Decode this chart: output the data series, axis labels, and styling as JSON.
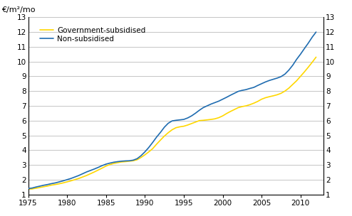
{
  "ylabel_left": "€/m²/mo",
  "ylim": [
    1,
    13
  ],
  "xlim": [
    1975,
    2013
  ],
  "yticks": [
    1,
    2,
    3,
    4,
    5,
    6,
    7,
    8,
    9,
    10,
    11,
    12,
    13
  ],
  "xticks": [
    1975,
    1980,
    1985,
    1990,
    1995,
    2000,
    2005,
    2010
  ],
  "gov_color": "#FFD700",
  "nonsub_color": "#1F6CB0",
  "gov_label": "Government-subsidised",
  "nonsub_label": "Non-subsidised",
  "gov_data": [
    [
      1975.0,
      1.35
    ],
    [
      1975.5,
      1.37
    ],
    [
      1976.0,
      1.42
    ],
    [
      1976.5,
      1.47
    ],
    [
      1977.0,
      1.52
    ],
    [
      1977.5,
      1.57
    ],
    [
      1978.0,
      1.63
    ],
    [
      1978.5,
      1.67
    ],
    [
      1979.0,
      1.72
    ],
    [
      1979.5,
      1.78
    ],
    [
      1980.0,
      1.85
    ],
    [
      1980.5,
      1.92
    ],
    [
      1981.0,
      2.0
    ],
    [
      1981.5,
      2.08
    ],
    [
      1982.0,
      2.18
    ],
    [
      1982.5,
      2.28
    ],
    [
      1983.0,
      2.4
    ],
    [
      1983.5,
      2.52
    ],
    [
      1984.0,
      2.65
    ],
    [
      1984.5,
      2.78
    ],
    [
      1985.0,
      2.92
    ],
    [
      1985.5,
      3.02
    ],
    [
      1986.0,
      3.1
    ],
    [
      1986.5,
      3.15
    ],
    [
      1987.0,
      3.2
    ],
    [
      1987.5,
      3.22
    ],
    [
      1988.0,
      3.25
    ],
    [
      1988.5,
      3.28
    ],
    [
      1989.0,
      3.35
    ],
    [
      1989.5,
      3.5
    ],
    [
      1990.0,
      3.68
    ],
    [
      1990.5,
      3.88
    ],
    [
      1991.0,
      4.1
    ],
    [
      1991.5,
      4.4
    ],
    [
      1992.0,
      4.68
    ],
    [
      1992.5,
      4.95
    ],
    [
      1993.0,
      5.18
    ],
    [
      1993.5,
      5.38
    ],
    [
      1994.0,
      5.52
    ],
    [
      1994.5,
      5.58
    ],
    [
      1995.0,
      5.62
    ],
    [
      1995.5,
      5.7
    ],
    [
      1996.0,
      5.8
    ],
    [
      1996.5,
      5.9
    ],
    [
      1997.0,
      6.0
    ],
    [
      1997.5,
      6.02
    ],
    [
      1998.0,
      6.05
    ],
    [
      1998.5,
      6.08
    ],
    [
      1999.0,
      6.12
    ],
    [
      1999.5,
      6.2
    ],
    [
      2000.0,
      6.32
    ],
    [
      2000.5,
      6.48
    ],
    [
      2001.0,
      6.62
    ],
    [
      2001.5,
      6.75
    ],
    [
      2002.0,
      6.88
    ],
    [
      2002.5,
      6.95
    ],
    [
      2003.0,
      7.0
    ],
    [
      2003.5,
      7.08
    ],
    [
      2004.0,
      7.18
    ],
    [
      2004.5,
      7.3
    ],
    [
      2005.0,
      7.45
    ],
    [
      2005.5,
      7.55
    ],
    [
      2006.0,
      7.62
    ],
    [
      2006.5,
      7.68
    ],
    [
      2007.0,
      7.75
    ],
    [
      2007.5,
      7.85
    ],
    [
      2008.0,
      8.0
    ],
    [
      2008.5,
      8.2
    ],
    [
      2009.0,
      8.45
    ],
    [
      2009.5,
      8.7
    ],
    [
      2010.0,
      9.0
    ],
    [
      2010.5,
      9.3
    ],
    [
      2011.0,
      9.62
    ],
    [
      2011.5,
      9.95
    ],
    [
      2012.0,
      10.3
    ]
  ],
  "nonsub_data": [
    [
      1975.0,
      1.4
    ],
    [
      1975.5,
      1.43
    ],
    [
      1976.0,
      1.5
    ],
    [
      1976.5,
      1.56
    ],
    [
      1977.0,
      1.62
    ],
    [
      1977.5,
      1.67
    ],
    [
      1978.0,
      1.73
    ],
    [
      1978.5,
      1.78
    ],
    [
      1979.0,
      1.85
    ],
    [
      1979.5,
      1.92
    ],
    [
      1980.0,
      2.0
    ],
    [
      1980.5,
      2.08
    ],
    [
      1981.0,
      2.18
    ],
    [
      1981.5,
      2.28
    ],
    [
      1982.0,
      2.4
    ],
    [
      1982.5,
      2.52
    ],
    [
      1983.0,
      2.62
    ],
    [
      1983.5,
      2.72
    ],
    [
      1984.0,
      2.83
    ],
    [
      1984.5,
      2.95
    ],
    [
      1985.0,
      3.05
    ],
    [
      1985.5,
      3.12
    ],
    [
      1986.0,
      3.18
    ],
    [
      1986.5,
      3.22
    ],
    [
      1987.0,
      3.25
    ],
    [
      1987.5,
      3.27
    ],
    [
      1988.0,
      3.28
    ],
    [
      1988.5,
      3.32
    ],
    [
      1989.0,
      3.42
    ],
    [
      1989.5,
      3.62
    ],
    [
      1990.0,
      3.88
    ],
    [
      1990.5,
      4.18
    ],
    [
      1991.0,
      4.52
    ],
    [
      1991.5,
      4.88
    ],
    [
      1992.0,
      5.2
    ],
    [
      1992.5,
      5.55
    ],
    [
      1993.0,
      5.82
    ],
    [
      1993.5,
      5.98
    ],
    [
      1994.0,
      6.02
    ],
    [
      1994.5,
      6.05
    ],
    [
      1995.0,
      6.08
    ],
    [
      1995.5,
      6.18
    ],
    [
      1996.0,
      6.32
    ],
    [
      1996.5,
      6.5
    ],
    [
      1997.0,
      6.7
    ],
    [
      1997.5,
      6.88
    ],
    [
      1998.0,
      7.0
    ],
    [
      1998.5,
      7.12
    ],
    [
      1999.0,
      7.22
    ],
    [
      1999.5,
      7.32
    ],
    [
      2000.0,
      7.45
    ],
    [
      2000.5,
      7.58
    ],
    [
      2001.0,
      7.72
    ],
    [
      2001.5,
      7.85
    ],
    [
      2002.0,
      7.98
    ],
    [
      2002.5,
      8.05
    ],
    [
      2003.0,
      8.1
    ],
    [
      2003.5,
      8.18
    ],
    [
      2004.0,
      8.25
    ],
    [
      2004.5,
      8.38
    ],
    [
      2005.0,
      8.5
    ],
    [
      2005.5,
      8.62
    ],
    [
      2006.0,
      8.72
    ],
    [
      2006.5,
      8.8
    ],
    [
      2007.0,
      8.88
    ],
    [
      2007.5,
      8.98
    ],
    [
      2008.0,
      9.15
    ],
    [
      2008.5,
      9.42
    ],
    [
      2009.0,
      9.75
    ],
    [
      2009.5,
      10.15
    ],
    [
      2010.0,
      10.5
    ],
    [
      2010.5,
      10.88
    ],
    [
      2011.0,
      11.25
    ],
    [
      2011.5,
      11.65
    ],
    [
      2012.0,
      12.0
    ]
  ],
  "background_color": "#ffffff",
  "grid_color": "#bbbbbb",
  "linewidth": 1.2
}
